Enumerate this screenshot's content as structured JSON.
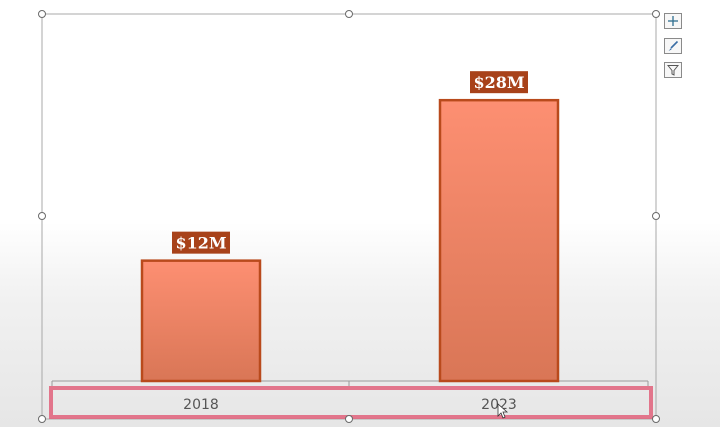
{
  "chart_data": {
    "type": "bar",
    "categories": [
      "2018",
      "2023"
    ],
    "values": [
      12,
      28
    ],
    "data_labels": [
      "$12M",
      "$28M"
    ],
    "title": "",
    "xlabel": "",
    "ylabel": "",
    "ylim": [
      0,
      34
    ],
    "grid": false,
    "legend": "none",
    "colors": {
      "bar_top": "#fd8f72",
      "bar_bottom": "#d97656",
      "bar_border": "#b94a1c",
      "label_bg": "#a8421a",
      "label_text": "#ffffff",
      "selection": "#e0607a",
      "frame": "#a8a8a8"
    }
  },
  "toolbar": {
    "elements_icon": "plus-icon",
    "styles_icon": "brush-icon",
    "filters_icon": "filter-icon"
  }
}
